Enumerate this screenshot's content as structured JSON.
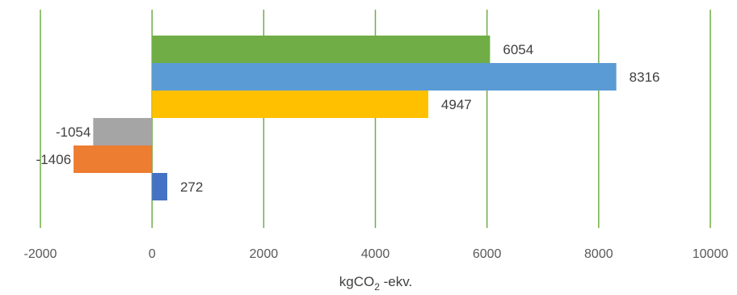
{
  "chart_data": {
    "type": "bar",
    "orientation": "horizontal",
    "values": [
      6054,
      8316,
      4947,
      -1054,
      -1406,
      272
    ],
    "colors": [
      "#70AD47",
      "#5B9BD5",
      "#FFC000",
      "#A5A5A5",
      "#ED7D31",
      "#4472C4"
    ],
    "data_labels": [
      "6054",
      "8316",
      "4947",
      "-1054",
      "-1406",
      "272"
    ],
    "xlabel_main": "kgCO",
    "xlabel_sub": "2",
    "xlabel_suffix": " -ekv.",
    "xlim": [
      -2000,
      10000
    ],
    "xticks": [
      -2000,
      0,
      2000,
      4000,
      6000,
      8000,
      10000
    ],
    "xtick_labels": [
      "-2000",
      "0",
      "2000",
      "4000",
      "6000",
      "8000",
      "10000"
    ],
    "grid": "vertical",
    "grid_color": "#70AD47",
    "zero_line_color": "#70AD47",
    "legend": "none"
  }
}
